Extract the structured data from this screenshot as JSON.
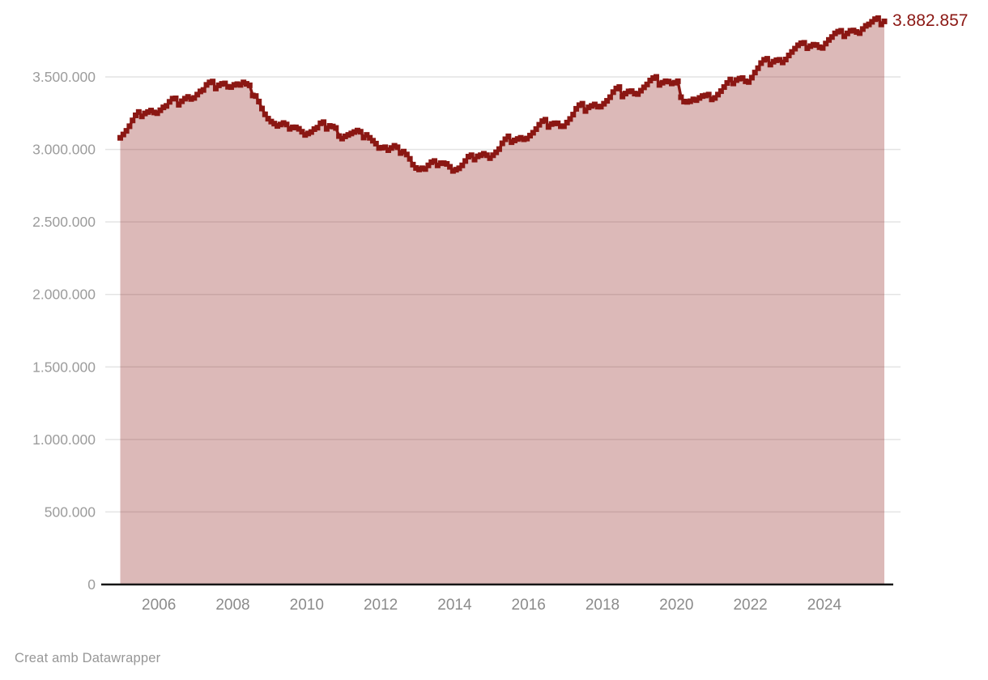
{
  "chart_data": {
    "type": "area",
    "frequency": "monthly",
    "x_start_year": 2005,
    "x_start_month": 1,
    "x_end_year": 2025,
    "x_end_month": 9,
    "ylim": [
      0,
      3900000
    ],
    "grid": true,
    "end_label": "3.882.857",
    "end_value": 3882857,
    "colors": {
      "line": "#8b1713",
      "fill": "rgba(139,23,19,0.30)",
      "gridline": "#e4e4e4",
      "baseline": "#151515",
      "y_tick_text": "#9c9c9c",
      "x_tick_text": "#8b8b8b"
    },
    "y_ticks": [
      {
        "value": 0,
        "label": "0"
      },
      {
        "value": 500000,
        "label": "500.000"
      },
      {
        "value": 1000000,
        "label": "1.000.000"
      },
      {
        "value": 1500000,
        "label": "1.500.000"
      },
      {
        "value": 2000000,
        "label": "2.000.000"
      },
      {
        "value": 2500000,
        "label": "2.500.000"
      },
      {
        "value": 3000000,
        "label": "3.000.000"
      },
      {
        "value": 3500000,
        "label": "3.500.000"
      }
    ],
    "x_ticks": [
      {
        "year": 2006,
        "label": "2006"
      },
      {
        "year": 2008,
        "label": "2008"
      },
      {
        "year": 2010,
        "label": "2010"
      },
      {
        "year": 2012,
        "label": "2012"
      },
      {
        "year": 2014,
        "label": "2014"
      },
      {
        "year": 2016,
        "label": "2016"
      },
      {
        "year": 2018,
        "label": "2018"
      },
      {
        "year": 2020,
        "label": "2020"
      },
      {
        "year": 2022,
        "label": "2022"
      },
      {
        "year": 2024,
        "label": "2024"
      }
    ],
    "values": [
      3080000,
      3103000,
      3128000,
      3160000,
      3200000,
      3235000,
      3258000,
      3228000,
      3248000,
      3258000,
      3268000,
      3255000,
      3250000,
      3270000,
      3290000,
      3300000,
      3328000,
      3350000,
      3352000,
      3308000,
      3332000,
      3350000,
      3362000,
      3348000,
      3355000,
      3378000,
      3400000,
      3410000,
      3445000,
      3462000,
      3468000,
      3420000,
      3442000,
      3452000,
      3455000,
      3432000,
      3430000,
      3445000,
      3450000,
      3445000,
      3462000,
      3452000,
      3442000,
      3372000,
      3368000,
      3330000,
      3282000,
      3242000,
      3212000,
      3192000,
      3178000,
      3162000,
      3172000,
      3182000,
      3172000,
      3142000,
      3152000,
      3152000,
      3142000,
      3122000,
      3100000,
      3110000,
      3120000,
      3140000,
      3150000,
      3180000,
      3188000,
      3142000,
      3162000,
      3158000,
      3148000,
      3092000,
      3075000,
      3090000,
      3100000,
      3110000,
      3120000,
      3130000,
      3122000,
      3082000,
      3100000,
      3080000,
      3060000,
      3040000,
      3010000,
      3012000,
      3015000,
      2995000,
      3010000,
      3025000,
      3015000,
      2975000,
      2985000,
      2965000,
      2935000,
      2895000,
      2872000,
      2862000,
      2870000,
      2865000,
      2890000,
      2912000,
      2920000,
      2890000,
      2905000,
      2905000,
      2900000,
      2880000,
      2852000,
      2860000,
      2870000,
      2890000,
      2920000,
      2950000,
      2960000,
      2930000,
      2952000,
      2960000,
      2970000,
      2960000,
      2940000,
      2960000,
      2980000,
      3002000,
      3042000,
      3070000,
      3090000,
      3050000,
      3062000,
      3072000,
      3080000,
      3070000,
      3075000,
      3095000,
      3115000,
      3140000,
      3170000,
      3195000,
      3205000,
      3155000,
      3175000,
      3180000,
      3180000,
      3160000,
      3160000,
      3185000,
      3210000,
      3240000,
      3280000,
      3305000,
      3315000,
      3265000,
      3290000,
      3300000,
      3310000,
      3295000,
      3295000,
      3315000,
      3335000,
      3360000,
      3395000,
      3420000,
      3430000,
      3365000,
      3385000,
      3400000,
      3402000,
      3385000,
      3382000,
      3405000,
      3428000,
      3448000,
      3475000,
      3492000,
      3500000,
      3445000,
      3460000,
      3470000,
      3468000,
      3455000,
      3460000,
      3470000,
      3360000,
      3330000,
      3328000,
      3332000,
      3345000,
      3340000,
      3355000,
      3368000,
      3372000,
      3378000,
      3345000,
      3355000,
      3378000,
      3402000,
      3430000,
      3458000,
      3482000,
      3455000,
      3478000,
      3488000,
      3492000,
      3470000,
      3465000,
      3495000,
      3530000,
      3560000,
      3595000,
      3618000,
      3625000,
      3585000,
      3605000,
      3615000,
      3618000,
      3600000,
      3620000,
      3648000,
      3672000,
      3695000,
      3718000,
      3732000,
      3735000,
      3698000,
      3712000,
      3722000,
      3720000,
      3705000,
      3700000,
      3730000,
      3755000,
      3775000,
      3800000,
      3812000,
      3818000,
      3780000,
      3800000,
      3818000,
      3820000,
      3810000,
      3802000,
      3830000,
      3852000,
      3862000,
      3880000,
      3898000,
      3905000,
      3862000,
      3882857
    ]
  },
  "footer": {
    "credit": "Creat amb Datawrapper"
  }
}
